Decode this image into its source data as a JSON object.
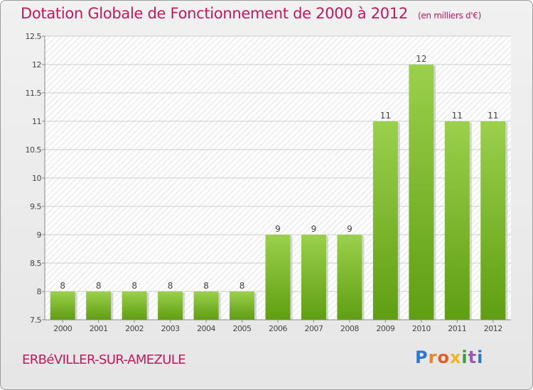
{
  "header": {
    "title": "Dotation Globale de Fonctionnement de 2000 à 2012",
    "unit": "(en milliers d'€)"
  },
  "footer": {
    "commune": "ERBéVILLER-SUR-AMEZULE",
    "logo": "Proxiti"
  },
  "colors": {
    "title": "#c2185b",
    "bar_light": "#9bd04c",
    "bar_dark": "#5f9e12"
  },
  "chart_data": {
    "type": "bar",
    "title": "Dotation Globale de Fonctionnement de 2000 à 2012",
    "subtitle": "(en milliers d'€)",
    "xlabel": "",
    "ylabel": "",
    "categories": [
      "2000",
      "2001",
      "2002",
      "2003",
      "2004",
      "2005",
      "2006",
      "2007",
      "2008",
      "2009",
      "2010",
      "2011",
      "2012"
    ],
    "values": [
      8,
      8,
      8,
      8,
      8,
      8,
      9,
      9,
      9,
      11,
      12,
      11,
      11
    ],
    "data_labels": [
      "8",
      "8",
      "8",
      "8",
      "8",
      "8",
      "9",
      "9",
      "9",
      "11",
      "12",
      "11",
      "11"
    ],
    "ylim": [
      7.5,
      12.5
    ],
    "yticks": [
      7.5,
      8,
      8.5,
      9,
      9.5,
      10,
      10.5,
      11,
      11.5,
      12,
      12.5
    ],
    "ytick_labels": [
      "7.5",
      "8",
      "8.5",
      "9",
      "9.5",
      "10",
      "10.5",
      "11",
      "11.5",
      "12",
      "12.5"
    ],
    "grid": true,
    "legend": "none"
  }
}
